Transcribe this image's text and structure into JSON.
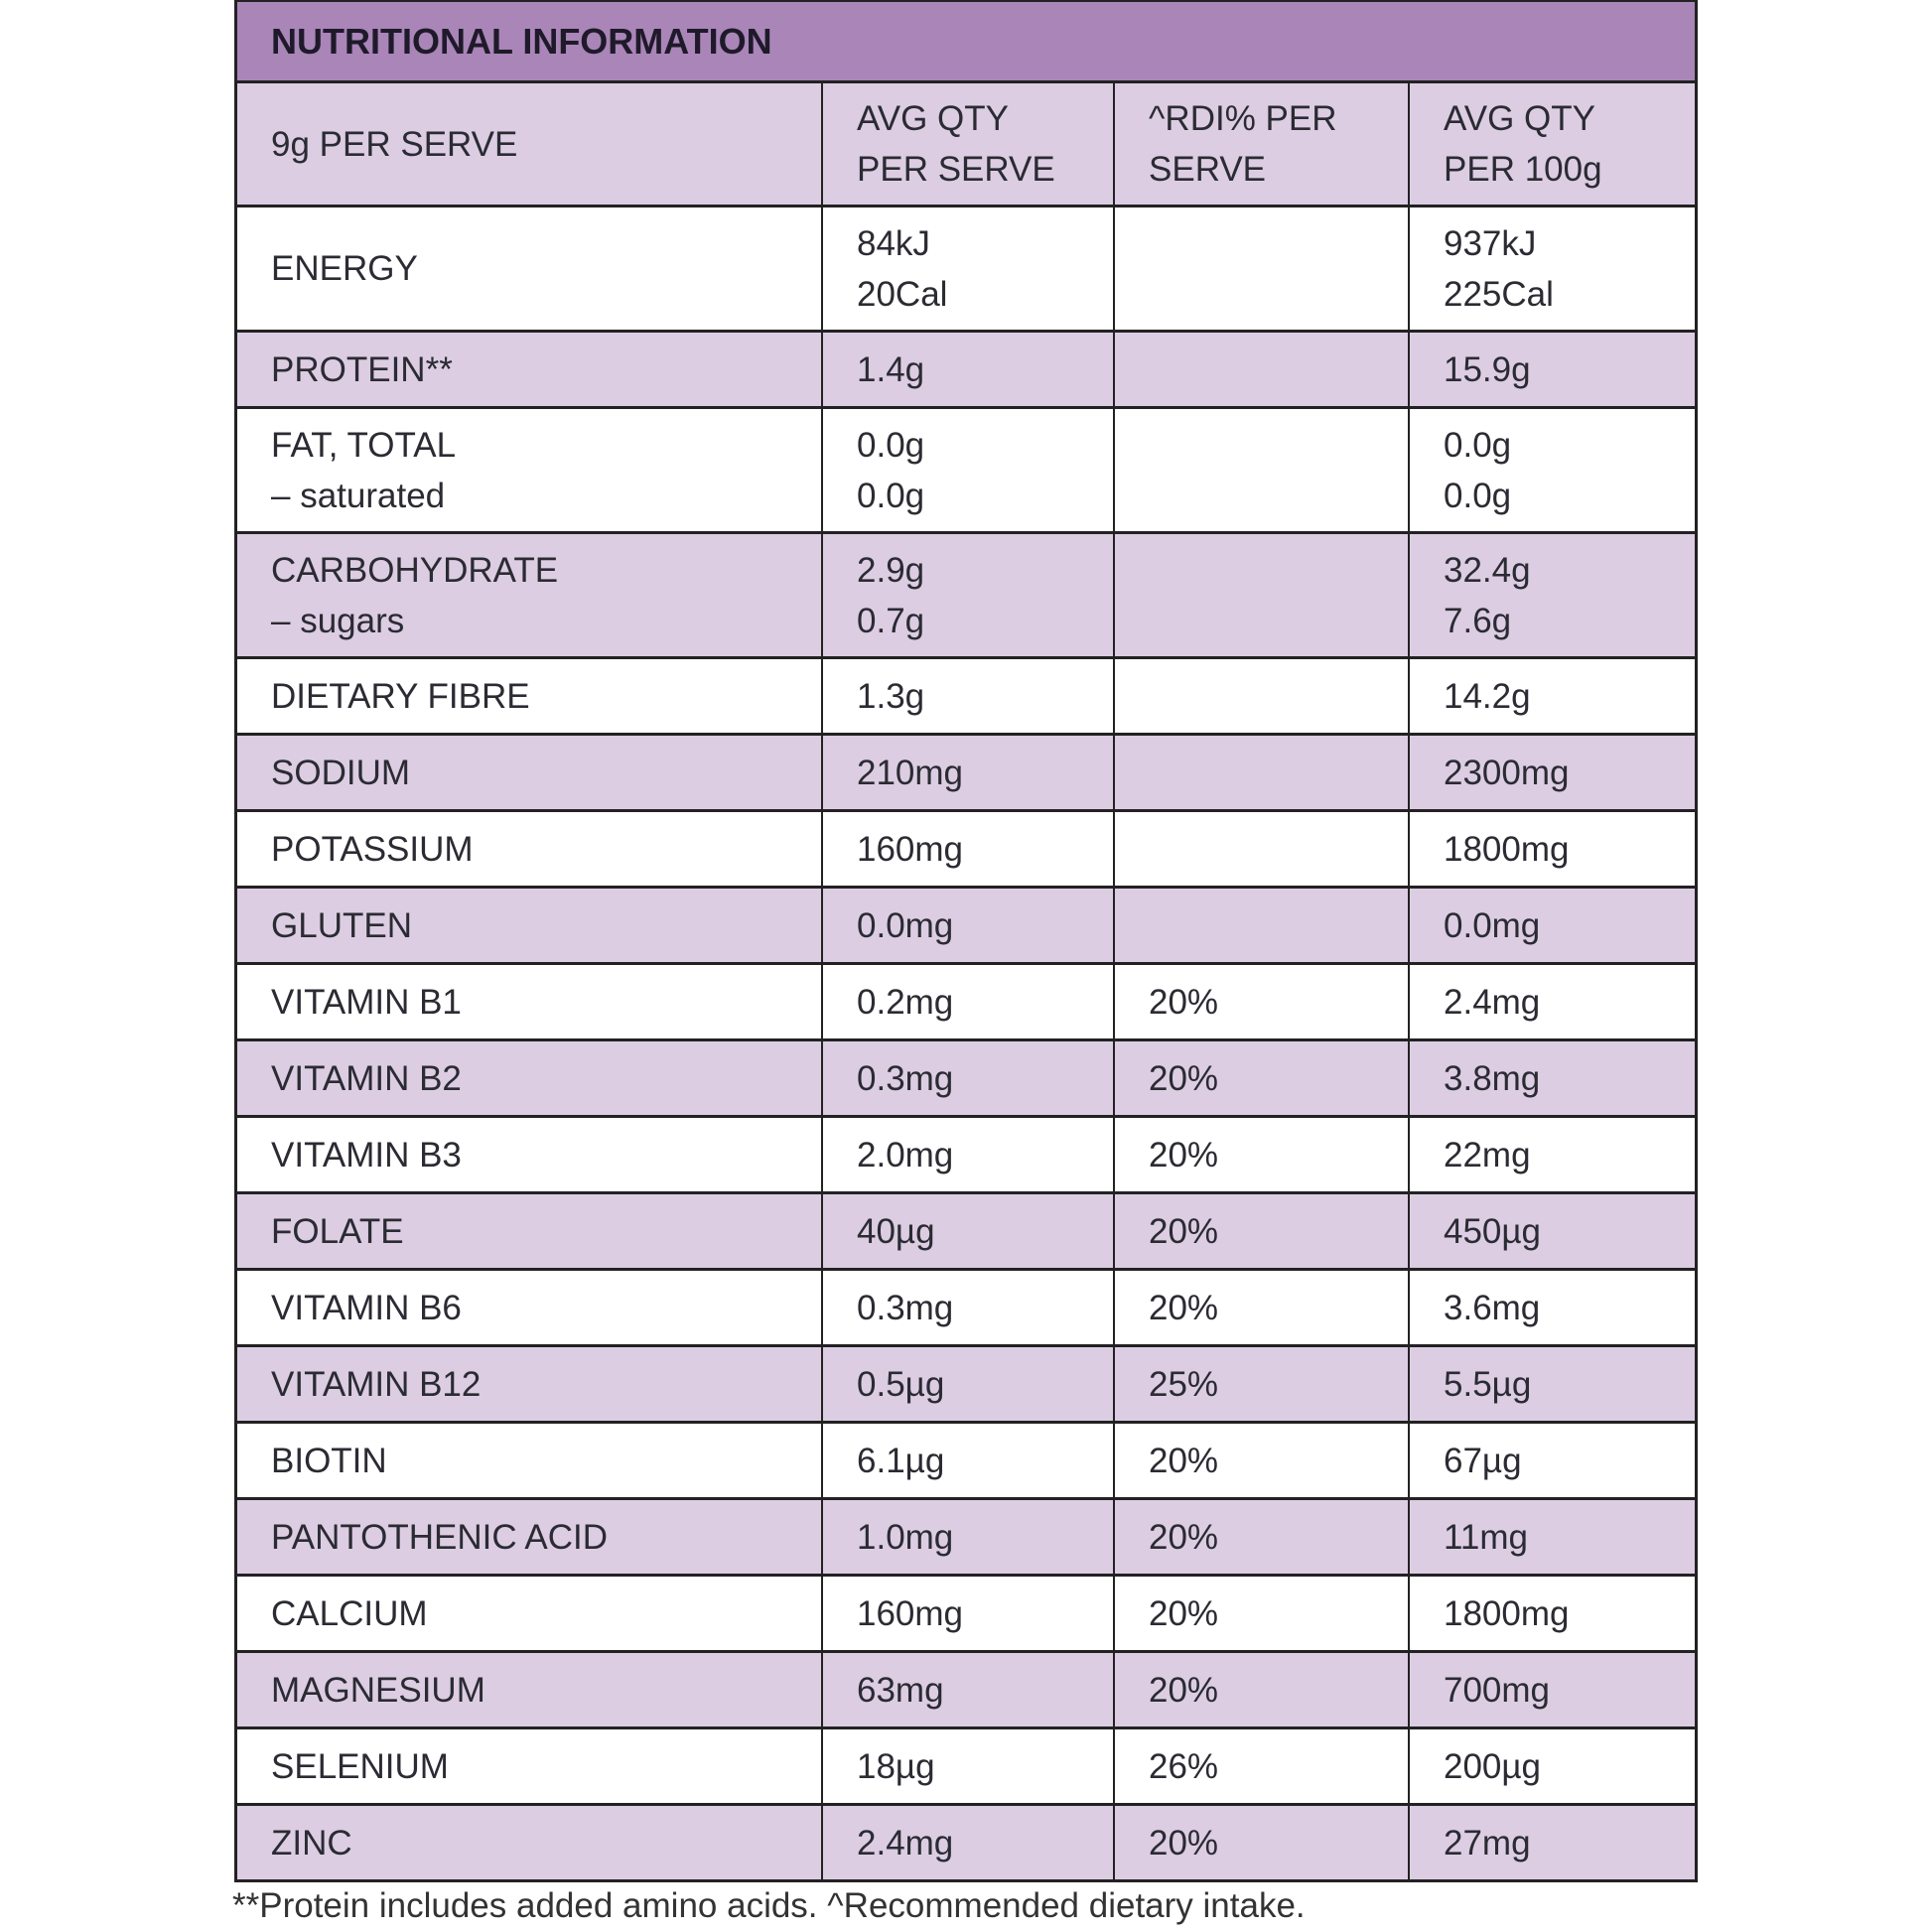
{
  "title": "NUTRITIONAL INFORMATION",
  "header": [
    "9g PER SERVE",
    "AVG QTY\nPER SERVE",
    "^RDI% PER\nSERVE",
    "AVG QTY\nPER 100g"
  ],
  "rows": [
    {
      "name": "ENERGY",
      "serve": "84kJ\n20Cal",
      "rdi": "",
      "per100": "937kJ\n225Cal"
    },
    {
      "name": "PROTEIN**",
      "serve": "1.4g",
      "rdi": "",
      "per100": "15.9g"
    },
    {
      "name": "FAT, TOTAL\n– saturated",
      "serve": "0.0g\n0.0g",
      "rdi": "",
      "per100": "0.0g\n0.0g"
    },
    {
      "name": "CARBOHYDRATE\n– sugars",
      "serve": "2.9g\n0.7g",
      "rdi": "",
      "per100": "32.4g\n7.6g"
    },
    {
      "name": "DIETARY FIBRE",
      "serve": "1.3g",
      "rdi": "",
      "per100": "14.2g"
    },
    {
      "name": "SODIUM",
      "serve": "210mg",
      "rdi": "",
      "per100": "2300mg"
    },
    {
      "name": "POTASSIUM",
      "serve": "160mg",
      "rdi": "",
      "per100": "1800mg"
    },
    {
      "name": "GLUTEN",
      "serve": "0.0mg",
      "rdi": "",
      "per100": "0.0mg"
    },
    {
      "name": "VITAMIN B1",
      "serve": "0.2mg",
      "rdi": "20%",
      "per100": "2.4mg"
    },
    {
      "name": "VITAMIN B2",
      "serve": "0.3mg",
      "rdi": "20%",
      "per100": "3.8mg"
    },
    {
      "name": "VITAMIN B3",
      "serve": "2.0mg",
      "rdi": "20%",
      "per100": "22mg"
    },
    {
      "name": "FOLATE",
      "serve": "40µg",
      "rdi": "20%",
      "per100": "450µg"
    },
    {
      "name": "VITAMIN B6",
      "serve": "0.3mg",
      "rdi": "20%",
      "per100": "3.6mg"
    },
    {
      "name": "VITAMIN B12",
      "serve": "0.5µg",
      "rdi": "25%",
      "per100": "5.5µg"
    },
    {
      "name": "BIOTIN",
      "serve": "6.1µg",
      "rdi": "20%",
      "per100": "67µg"
    },
    {
      "name": "PANTOTHENIC ACID",
      "serve": "1.0mg",
      "rdi": "20%",
      "per100": "11mg"
    },
    {
      "name": "CALCIUM",
      "serve": "160mg",
      "rdi": "20%",
      "per100": "1800mg"
    },
    {
      "name": "MAGNESIUM",
      "serve": "63mg",
      "rdi": "20%",
      "per100": "700mg"
    },
    {
      "name": "SELENIUM",
      "serve": "18µg",
      "rdi": "26%",
      "per100": "200µg"
    },
    {
      "name": "ZINC",
      "serve": "2.4mg",
      "rdi": "20%",
      "per100": "27mg"
    }
  ],
  "footnote": "**Protein includes added amino acids. ^Recommended dietary intake.",
  "colors": {
    "title_bg": "#a985b8",
    "shade": "#dccde3",
    "border": "#222222"
  }
}
